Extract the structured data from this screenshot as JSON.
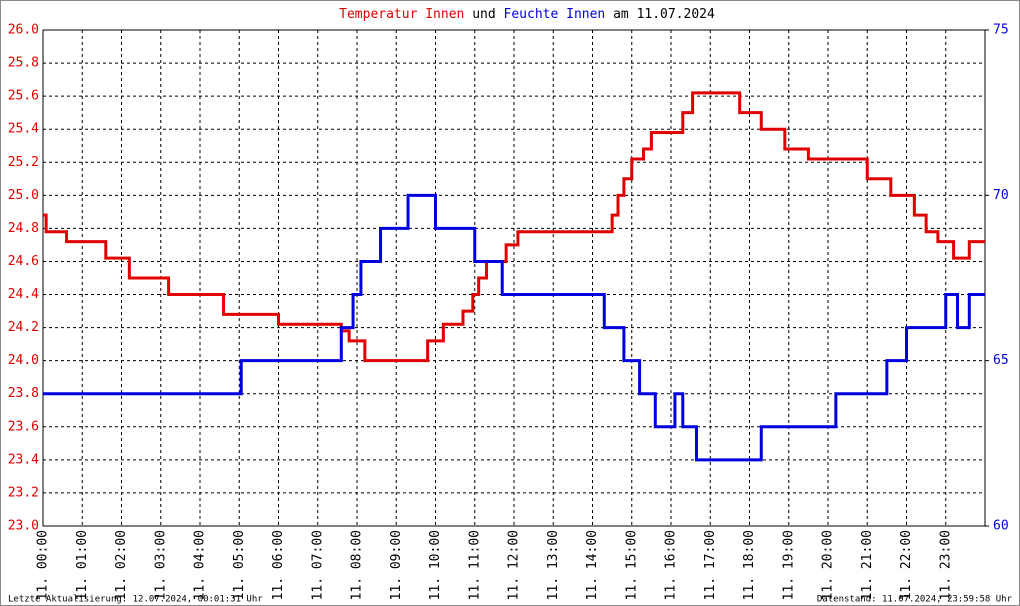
{
  "chart_data": {
    "type": "line",
    "title_connector": "und",
    "title_suffix": "am 11.07.2024",
    "footer_left": "Letzte Aktualisierung: 12.07.2024, 00:01:31 Uhr",
    "footer_right": "Datenstand: 11.07.2024, 23:59:58 Uhr",
    "grid": true,
    "xlim": [
      0,
      24
    ],
    "xticks": [
      {
        "value": 0,
        "label": "11. 00:00"
      },
      {
        "value": 1,
        "label": "11. 01:00"
      },
      {
        "value": 2,
        "label": "11. 02:00"
      },
      {
        "value": 3,
        "label": "11. 03:00"
      },
      {
        "value": 4,
        "label": "11. 04:00"
      },
      {
        "value": 5,
        "label": "11. 05:00"
      },
      {
        "value": 6,
        "label": "11. 06:00"
      },
      {
        "value": 7,
        "label": "11. 07:00"
      },
      {
        "value": 8,
        "label": "11. 08:00"
      },
      {
        "value": 9,
        "label": "11. 09:00"
      },
      {
        "value": 10,
        "label": "11. 10:00"
      },
      {
        "value": 11,
        "label": "11. 11:00"
      },
      {
        "value": 12,
        "label": "11. 12:00"
      },
      {
        "value": 13,
        "label": "11. 13:00"
      },
      {
        "value": 14,
        "label": "11. 14:00"
      },
      {
        "value": 15,
        "label": "11. 15:00"
      },
      {
        "value": 16,
        "label": "11. 16:00"
      },
      {
        "value": 17,
        "label": "11. 17:00"
      },
      {
        "value": 18,
        "label": "11. 18:00"
      },
      {
        "value": 19,
        "label": "11. 19:00"
      },
      {
        "value": 20,
        "label": "11. 20:00"
      },
      {
        "value": 21,
        "label": "11. 21:00"
      },
      {
        "value": 22,
        "label": "11. 22:00"
      },
      {
        "value": 23,
        "label": "11. 23:00"
      }
    ],
    "ylim": [
      23.0,
      26.0
    ],
    "yticks": [
      {
        "value": 23.0,
        "label": "23.0"
      },
      23.2,
      23.4,
      23.6,
      23.8,
      {
        "value": 24.0,
        "label": "24.0"
      },
      24.2,
      24.4,
      24.6,
      24.8,
      {
        "value": 25.0,
        "label": "25.0"
      },
      25.2,
      25.4,
      25.6,
      25.8,
      {
        "value": 26.0,
        "label": "26.0"
      }
    ],
    "y2lim": [
      60,
      75
    ],
    "y2ticks": [
      60,
      65,
      70,
      75
    ],
    "series": [
      {
        "name": "Temperatur Innen",
        "color": "#e00000",
        "x": [
          0,
          0.08,
          0.08,
          0.6,
          0.6,
          1.6,
          1.6,
          2.2,
          2.2,
          3.2,
          3.2,
          4.6,
          4.6,
          6.0,
          6.0,
          7.6,
          7.6,
          7.8,
          7.8,
          8.2,
          8.2,
          9.8,
          9.8,
          10.2,
          10.2,
          10.7,
          10.7,
          10.95,
          10.95,
          11.1,
          11.1,
          11.3,
          11.3,
          11.8,
          11.8,
          12.1,
          12.1,
          14.5,
          14.5,
          14.65,
          14.65,
          14.8,
          14.8,
          15.0,
          15.0,
          15.3,
          15.3,
          15.5,
          15.5,
          16.3,
          16.3,
          16.55,
          16.55,
          17.75,
          17.75,
          18.3,
          18.3,
          18.9,
          18.9,
          19.5,
          19.5,
          21.0,
          21.0,
          21.6,
          21.6,
          22.2,
          22.2,
          22.5,
          22.5,
          22.8,
          22.8,
          23.2,
          23.2,
          23.6,
          23.6,
          24
        ],
        "values": [
          24.88,
          24.88,
          24.78,
          24.78,
          24.72,
          24.72,
          24.62,
          24.62,
          24.5,
          24.5,
          24.4,
          24.4,
          24.28,
          24.28,
          24.22,
          24.22,
          24.18,
          24.18,
          24.12,
          24.12,
          24.0,
          24.0,
          24.12,
          24.12,
          24.22,
          24.22,
          24.3,
          24.3,
          24.4,
          24.4,
          24.5,
          24.5,
          24.6,
          24.6,
          24.7,
          24.7,
          24.78,
          24.78,
          24.88,
          24.88,
          25.0,
          25.0,
          25.1,
          25.1,
          25.22,
          25.22,
          25.28,
          25.28,
          25.38,
          25.38,
          25.5,
          25.5,
          25.62,
          25.62,
          25.5,
          25.5,
          25.4,
          25.4,
          25.28,
          25.28,
          25.22,
          25.22,
          25.1,
          25.1,
          25.0,
          25.0,
          24.88,
          24.88,
          24.78,
          24.78,
          24.72,
          24.72,
          24.62,
          24.62,
          24.72,
          24.72
        ]
      },
      {
        "name": "Feuchte Innen",
        "color": "#0000e0",
        "axis": "y2",
        "x": [
          0,
          5.05,
          5.05,
          7.6,
          7.6,
          7.9,
          7.9,
          8.1,
          8.1,
          8.6,
          8.6,
          9.3,
          9.3,
          10.0,
          10.0,
          11.0,
          11.0,
          11.7,
          11.7,
          14.3,
          14.3,
          14.8,
          14.8,
          15.2,
          15.2,
          15.6,
          15.6,
          16.1,
          16.1,
          16.3,
          16.3,
          16.65,
          16.65,
          18.3,
          18.3,
          20.2,
          20.2,
          21.5,
          21.5,
          22.0,
          22.0,
          23.0,
          23.0,
          23.3,
          23.3,
          23.6,
          23.6,
          24
        ],
        "values": [
          64,
          64,
          65,
          65,
          66,
          66,
          67,
          67,
          68,
          68,
          69,
          69,
          70,
          70,
          69,
          69,
          68,
          68,
          67,
          67,
          66,
          66,
          65,
          65,
          64,
          64,
          63,
          63,
          64,
          64,
          63,
          63,
          62,
          62,
          63,
          63,
          64,
          64,
          65,
          65,
          66,
          66,
          67,
          67,
          66,
          66,
          67,
          67
        ]
      }
    ]
  }
}
